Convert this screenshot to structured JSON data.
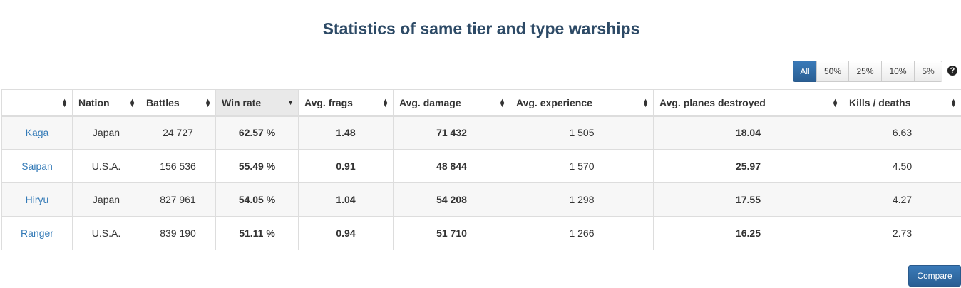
{
  "title": "Statistics of same tier and type warships",
  "filters": [
    "All",
    "50%",
    "25%",
    "10%",
    "5%"
  ],
  "help_icon": "?",
  "columns": [
    "",
    "Nation",
    "Battles",
    "Win rate",
    "Avg. frags",
    "Avg. damage",
    "Avg. experience",
    "Avg. planes destroyed",
    "Kills / deaths"
  ],
  "rows": [
    {
      "ship": "Kaga",
      "nation": "Japan",
      "battles": "24 727",
      "win_rate": "62.57 %",
      "frags": "1.48",
      "damage": "71 432",
      "experience": "1 505",
      "planes": "18.04",
      "kd": "6.63"
    },
    {
      "ship": "Saipan",
      "nation": "U.S.A.",
      "battles": "156 536",
      "win_rate": "55.49 %",
      "frags": "0.91",
      "damage": "48 844",
      "experience": "1 570",
      "planes": "25.97",
      "kd": "4.50"
    },
    {
      "ship": "Hiryu",
      "nation": "Japan",
      "battles": "827 961",
      "win_rate": "54.05 %",
      "frags": "1.04",
      "damage": "54 208",
      "experience": "1 298",
      "planes": "17.55",
      "kd": "4.27"
    },
    {
      "ship": "Ranger",
      "nation": "U.S.A.",
      "battles": "839 190",
      "win_rate": "51.11 %",
      "frags": "0.94",
      "damage": "51 710",
      "experience": "1 266",
      "planes": "16.25",
      "kd": "2.73"
    }
  ],
  "compare_label": "Compare",
  "colors": {
    "purple": "#d042e8",
    "green": "#4caf1a",
    "dark_green": "#2e7d1a",
    "yellow": "#f0c020",
    "link": "#337ab7",
    "button": "#2a5f94"
  }
}
